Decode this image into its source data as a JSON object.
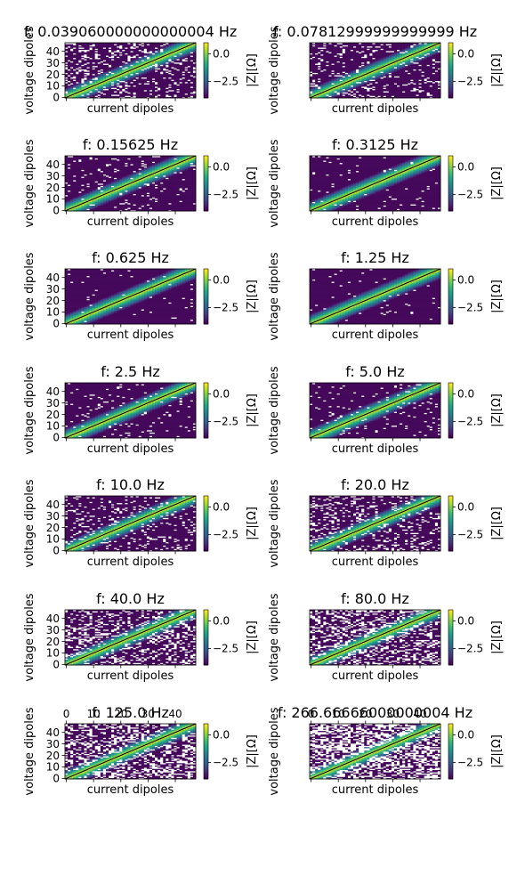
{
  "figure": {
    "background": "#ffffff",
    "colormap": "viridis",
    "nodata_color": "#ffffff"
  },
  "chart_data": [
    {
      "type": "heatmap",
      "title": "f: 0.039060000000000004 Hz",
      "xlabel": "current dipoles",
      "ylabel": "voltage dipoles",
      "yticks": [
        0,
        10,
        20,
        30,
        40
      ],
      "xticklabels": [],
      "cbar_label": "|Z|[Ω]",
      "cbar_ticks": [
        "0.0",
        "−2.5"
      ],
      "clim": [
        -4,
        1
      ],
      "grid_n": 48,
      "missing_density": 0.18,
      "missing_side": "both",
      "diagonal_line": true
    },
    {
      "type": "heatmap",
      "title": "f: 0.07812999999999999 Hz",
      "xlabel": "current dipoles",
      "ylabel": "voltage dipoles",
      "yticks": [],
      "xticklabels": [],
      "cbar_label": "|Z|[Ω]",
      "cbar_ticks": [
        "0.0",
        "−2.5"
      ],
      "clim": [
        -4,
        1
      ],
      "grid_n": 48,
      "missing_density": 0.12,
      "missing_side": "both",
      "diagonal_line": true
    },
    {
      "type": "heatmap",
      "title": "f: 0.15625 Hz",
      "xlabel": "current dipoles",
      "ylabel": "voltage dipoles",
      "yticks": [
        0,
        10,
        20,
        30,
        40
      ],
      "xticklabels": [],
      "cbar_label": "|Z|[Ω]",
      "cbar_ticks": [
        "0.0",
        "−2.5"
      ],
      "clim": [
        -4,
        1
      ],
      "grid_n": 48,
      "missing_density": 0.07,
      "missing_side": "both",
      "diagonal_line": true
    },
    {
      "type": "heatmap",
      "title": "f: 0.3125 Hz",
      "xlabel": "current dipoles",
      "ylabel": "voltage dipoles",
      "yticks": [],
      "xticklabels": [],
      "cbar_label": "|Z|[Ω]",
      "cbar_ticks": [
        "0.0",
        "−2.5"
      ],
      "clim": [
        -4,
        1
      ],
      "grid_n": 48,
      "missing_density": 0.03,
      "missing_side": "both",
      "diagonal_line": true
    },
    {
      "type": "heatmap",
      "title": "f: 0.625 Hz",
      "xlabel": "current dipoles",
      "ylabel": "voltage dipoles",
      "yticks": [
        0,
        10,
        20,
        30,
        40
      ],
      "xticklabels": [],
      "cbar_label": "|Z|[Ω]",
      "cbar_ticks": [
        "0.0",
        "−2.5"
      ],
      "clim": [
        -4,
        1
      ],
      "grid_n": 48,
      "missing_density": 0.03,
      "missing_side": "both",
      "diagonal_line": true
    },
    {
      "type": "heatmap",
      "title": "f: 1.25 Hz",
      "xlabel": "current dipoles",
      "ylabel": "voltage dipoles",
      "yticks": [],
      "xticklabels": [],
      "cbar_label": "|Z|[Ω]",
      "cbar_ticks": [
        "0.0",
        "−2.5"
      ],
      "clim": [
        -4,
        1
      ],
      "grid_n": 48,
      "missing_density": 0.02,
      "missing_side": "both",
      "diagonal_line": true
    },
    {
      "type": "heatmap",
      "title": "f: 2.5 Hz",
      "xlabel": "current dipoles",
      "ylabel": "voltage dipoles",
      "yticks": [
        0,
        10,
        20,
        30,
        40
      ],
      "xticklabels": [],
      "cbar_label": "|Z|[Ω]",
      "cbar_ticks": [
        "0.0",
        "−2.5"
      ],
      "clim": [
        -4,
        1
      ],
      "grid_n": 48,
      "missing_density": 0.05,
      "missing_side": "both",
      "diagonal_line": true
    },
    {
      "type": "heatmap",
      "title": "f: 5.0 Hz",
      "xlabel": "current dipoles",
      "ylabel": "voltage dipoles",
      "yticks": [],
      "xticklabels": [],
      "cbar_label": "|Z|[Ω]",
      "cbar_ticks": [
        "0.0",
        "−2.5"
      ],
      "clim": [
        -4,
        1
      ],
      "grid_n": 48,
      "missing_density": 0.06,
      "missing_side": "both",
      "diagonal_line": true
    },
    {
      "type": "heatmap",
      "title": "f: 10.0 Hz",
      "xlabel": "current dipoles",
      "ylabel": "voltage dipoles",
      "yticks": [
        0,
        10,
        20,
        30,
        40
      ],
      "xticklabels": [],
      "cbar_label": "|Z|[Ω]",
      "cbar_ticks": [
        "0.0",
        "−2.5"
      ],
      "clim": [
        -4,
        1
      ],
      "grid_n": 48,
      "missing_density": 0.14,
      "missing_side": "both",
      "diagonal_line": true
    },
    {
      "type": "heatmap",
      "title": "f: 20.0 Hz",
      "xlabel": "current dipoles",
      "ylabel": "voltage dipoles",
      "yticks": [],
      "xticklabels": [],
      "cbar_label": "|Z|[Ω]",
      "cbar_ticks": [
        "0.0",
        "−2.5"
      ],
      "clim": [
        -4,
        1
      ],
      "grid_n": 48,
      "missing_density": 0.18,
      "missing_side": "both",
      "diagonal_line": true
    },
    {
      "type": "heatmap",
      "title": "f: 40.0 Hz",
      "xlabel": "current dipoles",
      "ylabel": "voltage dipoles",
      "yticks": [
        0,
        10,
        20,
        30,
        40
      ],
      "xticklabels": [],
      "cbar_label": "|Z|[Ω]",
      "cbar_ticks": [
        "0.0",
        "−2.5"
      ],
      "clim": [
        -4,
        1
      ],
      "grid_n": 48,
      "missing_density": 0.3,
      "missing_side": "both",
      "diagonal_line": true
    },
    {
      "type": "heatmap",
      "title": "f: 80.0 Hz",
      "xlabel": "current dipoles",
      "ylabel": "voltage dipoles",
      "yticks": [],
      "xticklabels": [],
      "cbar_label": "|Z|[Ω]",
      "cbar_ticks": [
        "0.0",
        "−2.5"
      ],
      "clim": [
        -4,
        1
      ],
      "grid_n": 48,
      "missing_density": 0.33,
      "missing_side": "both",
      "diagonal_line": true
    },
    {
      "type": "heatmap",
      "title": "f: 125.0 Hz",
      "xlabel": "current dipoles",
      "ylabel": "voltage dipoles",
      "yticks": [
        0,
        10,
        20,
        30,
        40
      ],
      "xticklabels": [
        "0",
        "10",
        "20",
        "30",
        "40"
      ],
      "cbar_label": "|Z|[Ω]",
      "cbar_ticks": [
        "0.0",
        "−2.5"
      ],
      "clim": [
        -4,
        1
      ],
      "grid_n": 48,
      "missing_density": 0.35,
      "missing_side": "both",
      "diagonal_line": true
    },
    {
      "type": "heatmap",
      "title": "f: 266.66666000000004 Hz",
      "xlabel": "current dipoles",
      "ylabel": "voltage dipoles",
      "yticks": [],
      "xticklabels": [
        "0",
        "10",
        "20",
        "30",
        "40"
      ],
      "cbar_label": "|Z|[Ω]",
      "cbar_ticks": [
        "0.0",
        "−2.5"
      ],
      "clim": [
        -4,
        1
      ],
      "grid_n": 48,
      "missing_density": 0.5,
      "missing_side": "both",
      "diagonal_line": true
    }
  ]
}
